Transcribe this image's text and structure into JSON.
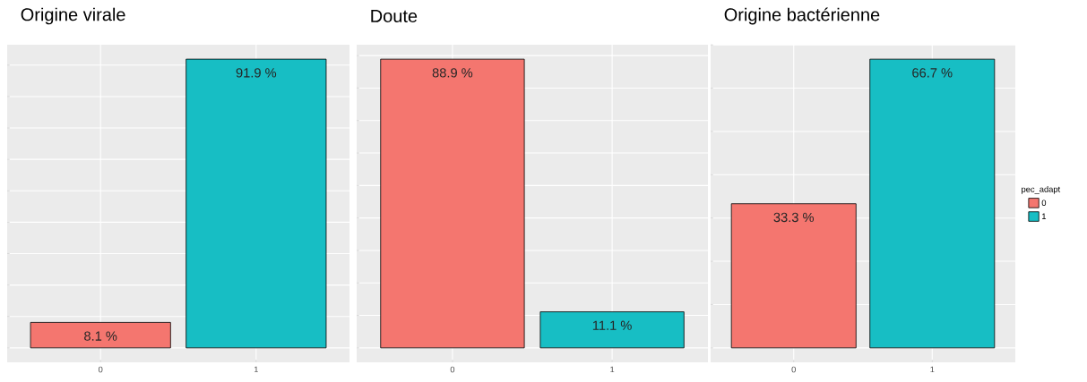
{
  "chart_data": [
    {
      "type": "bar",
      "title": "Origine virale",
      "categories": [
        "0",
        "1"
      ],
      "tick_labels": "x",
      "grid": true,
      "legend": false,
      "series": [
        {
          "color": "#f4766f",
          "values": [
            8.1,
            null
          ],
          "value_labels": [
            "8.1 %",
            null
          ]
        },
        {
          "color": "#17bec4",
          "values": [
            null,
            91.9
          ],
          "value_labels": [
            null,
            "91.9 %"
          ]
        }
      ]
    },
    {
      "type": "bar",
      "title": "Doute",
      "categories": [
        "0",
        "1"
      ],
      "tick_labels": "x",
      "grid": true,
      "legend": false,
      "series": [
        {
          "color": "#f4766f",
          "values": [
            88.9,
            null
          ],
          "value_labels": [
            "88.9 %",
            null
          ]
        },
        {
          "color": "#17bec4",
          "values": [
            null,
            11.1
          ],
          "value_labels": [
            null,
            "11.1 %"
          ]
        }
      ]
    },
    {
      "type": "bar",
      "title": "Origine bactérienne",
      "categories": [
        "0",
        "1"
      ],
      "tick_labels": "x",
      "grid": true,
      "legend": "right",
      "legend_title": "pec_adapt",
      "series": [
        {
          "name": "0",
          "color": "#f4766f",
          "values": [
            33.3,
            null
          ],
          "value_labels": [
            "33.3 %",
            null
          ]
        },
        {
          "name": "1",
          "color": "#17bec4",
          "values": [
            null,
            66.7
          ],
          "value_labels": [
            null,
            "66.7 %"
          ]
        }
      ]
    }
  ]
}
